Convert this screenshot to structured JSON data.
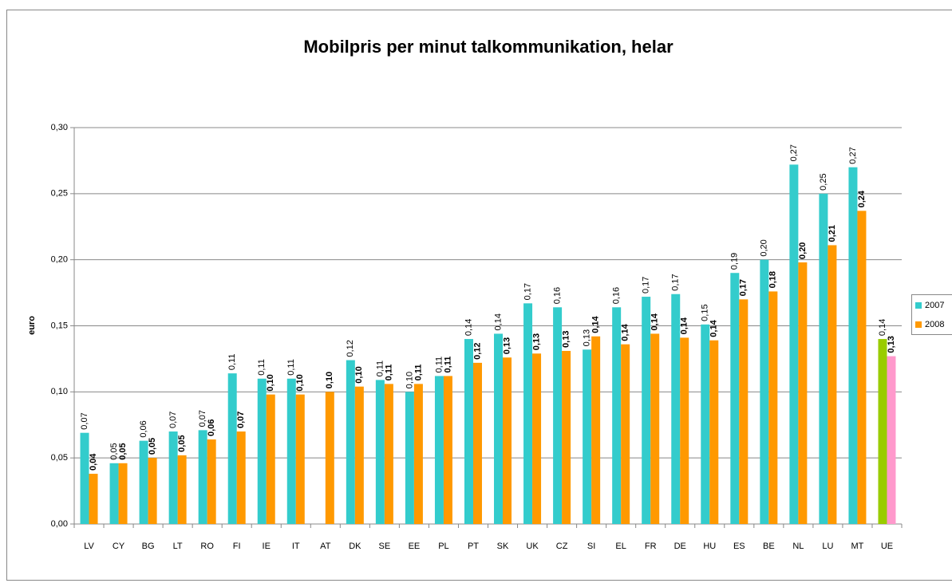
{
  "chart_data": {
    "type": "bar",
    "title": "Mobilpris per minut talkommunikation, helar",
    "y_label": "euro",
    "categories": [
      "LV",
      "CY",
      "BG",
      "LT",
      "RO",
      "FI",
      "IE",
      "IT",
      "AT",
      "DK",
      "SE",
      "EE",
      "PL",
      "PT",
      "SK",
      "UK",
      "CZ",
      "SI",
      "EL",
      "FR",
      "DE",
      "HU",
      "ES",
      "BE",
      "NL",
      "LU",
      "MT",
      "UE"
    ],
    "series": [
      {
        "name": "2007",
        "color": "#33cccc",
        "colors": [
          "#33cccc",
          "#33cccc",
          "#33cccc",
          "#33cccc",
          "#33cccc",
          "#33cccc",
          "#33cccc",
          "#33cccc",
          "#33cccc",
          "#33cccc",
          "#33cccc",
          "#33cccc",
          "#33cccc",
          "#33cccc",
          "#33cccc",
          "#33cccc",
          "#33cccc",
          "#33cccc",
          "#33cccc",
          "#33cccc",
          "#33cccc",
          "#33cccc",
          "#33cccc",
          "#33cccc",
          "#33cccc",
          "#33cccc",
          "#33cccc",
          "#99cc00"
        ],
        "values": [
          0.069,
          0.046,
          0.063,
          0.07,
          0.071,
          0.114,
          0.11,
          0.11,
          null,
          0.124,
          0.109,
          0.1,
          0.112,
          0.14,
          0.144,
          0.167,
          0.164,
          0.132,
          0.164,
          0.172,
          0.174,
          0.151,
          0.19,
          0.2,
          0.272,
          0.25,
          0.27,
          0.14
        ],
        "value_labels": [
          "0,07",
          "0,05",
          "0,06",
          "0,07",
          "0,07",
          "0,11",
          "0,11",
          "0,11",
          null,
          "0,12",
          "0,11",
          "0,10",
          "0,11",
          "0,14",
          "0,14",
          "0,17",
          "0,16",
          "0,13",
          "0,16",
          "0,17",
          "0,17",
          "0,15",
          "0,19",
          "0,20",
          "0,27",
          "0,25",
          "0,27",
          "0,14"
        ]
      },
      {
        "name": "2008",
        "color": "#ff9900",
        "colors": [
          "#ff9900",
          "#ff9900",
          "#ff9900",
          "#ff9900",
          "#ff9900",
          "#ff9900",
          "#ff9900",
          "#ff9900",
          "#ff9900",
          "#ff9900",
          "#ff9900",
          "#ff9900",
          "#ff9900",
          "#ff9900",
          "#ff9900",
          "#ff9900",
          "#ff9900",
          "#ff9900",
          "#ff9900",
          "#ff9900",
          "#ff9900",
          "#ff9900",
          "#ff9900",
          "#ff9900",
          "#ff9900",
          "#ff9900",
          "#ff9900",
          "#ff99cc"
        ],
        "values": [
          0.038,
          0.046,
          0.05,
          0.052,
          0.064,
          0.07,
          0.098,
          0.098,
          0.1,
          0.104,
          0.106,
          0.106,
          0.112,
          0.122,
          0.126,
          0.129,
          0.131,
          0.142,
          0.136,
          0.144,
          0.141,
          0.139,
          0.17,
          0.176,
          0.198,
          0.211,
          0.237,
          0.127
        ],
        "value_labels": [
          "0,04",
          "0,05",
          "0,05",
          "0,05",
          "0,06",
          "0,07",
          "0,10",
          "0,10",
          "0,10",
          "0,10",
          "0,11",
          "0,11",
          "0,11",
          "0,12",
          "0,13",
          "0,13",
          "0,13",
          "0,14",
          "0,14",
          "0,14",
          "0,14",
          "0,14",
          "0,17",
          "0,18",
          "0,20",
          "0,21",
          "0,24",
          "0,13"
        ]
      }
    ],
    "ylim": [
      0,
      0.3
    ],
    "yticks": [
      {
        "value": 0,
        "label": "0,00"
      },
      {
        "value": 0.05,
        "label": "0,05"
      },
      {
        "value": 0.1,
        "label": "0,10"
      },
      {
        "value": 0.15,
        "label": "0,15"
      },
      {
        "value": 0.2,
        "label": "0,20"
      },
      {
        "value": 0.25,
        "label": "0,25"
      },
      {
        "value": 0.3,
        "label": "0,30"
      }
    ],
    "grid": true,
    "legend": "right"
  }
}
